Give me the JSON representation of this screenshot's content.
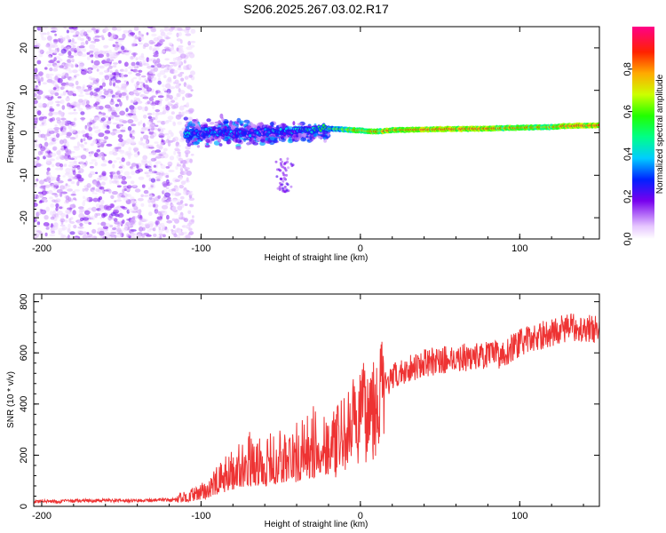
{
  "title": "S206.2025.267.03.02.R17",
  "chart_data": [
    {
      "type": "heatmap",
      "name": "spectrogram",
      "xlabel": "Height of straight line (km)",
      "ylabel": "Frequency (Hz)",
      "xlim": [
        -205,
        150
      ],
      "ylim": [
        -25,
        25
      ],
      "x_ticks": [
        -200,
        -100,
        0,
        100
      ],
      "x_tick_labels": [
        "-200",
        "-100",
        "0",
        "100"
      ],
      "y_ticks": [
        20,
        10,
        0,
        -10,
        -20
      ],
      "y_tick_labels": [
        "20",
        "10",
        "0",
        "-10",
        "-20"
      ],
      "colorbar": {
        "label": "Normalized spectral amplitude",
        "range": [
          0,
          1
        ],
        "ticks": [
          0.0,
          0.2,
          0.4,
          0.6,
          0.8
        ],
        "tick_labels": [
          "0.0",
          "0.2",
          "0.4",
          "0.6",
          "0.8"
        ]
      },
      "carrier_line": {
        "x": [
          -110,
          -95,
          -80,
          -60,
          -40,
          -22,
          -10,
          0,
          10,
          20,
          40,
          60,
          80,
          100,
          120,
          130,
          150
        ],
        "frequency": [
          -0.5,
          0.2,
          -0.2,
          0.3,
          0.5,
          1.0,
          0.8,
          0.5,
          0.3,
          0.6,
          0.8,
          0.9,
          1.0,
          1.2,
          1.4,
          1.6,
          1.8
        ],
        "amplitude": [
          0.25,
          0.2,
          0.18,
          0.2,
          0.25,
          0.45,
          0.7,
          0.75,
          0.8,
          0.85,
          0.9,
          0.9,
          0.85,
          0.8,
          0.8,
          0.9,
          0.9
        ]
      },
      "noise_regions": [
        {
          "x_range": [
            -205,
            -120
          ],
          "freq_range": [
            -25,
            25
          ],
          "amplitude": "low (0.05-0.2)"
        },
        {
          "x_range": [
            -120,
            -105
          ],
          "freq_range": [
            -25,
            25
          ],
          "amplitude": "very low (0.02-0.08)"
        },
        {
          "x_range": [
            -110,
            -20
          ],
          "freq_range": [
            -8,
            8
          ],
          "amplitude": "medium (0.1-0.4)"
        }
      ]
    },
    {
      "type": "line",
      "name": "snr",
      "xlabel": "Height of straight line (km)",
      "ylabel": "SNR (10 * v/v)",
      "xlim": [
        -205,
        150
      ],
      "ylim": [
        0,
        830
      ],
      "x_ticks": [
        -200,
        -100,
        0,
        100
      ],
      "x_tick_labels": [
        "-200",
        "-100",
        "0",
        "100"
      ],
      "y_ticks": [
        0,
        200,
        400,
        600,
        800
      ],
      "y_tick_labels": [
        "0",
        "200",
        "400",
        "600",
        "800"
      ],
      "series": [
        {
          "name": "SNR",
          "color": "#ee3333",
          "x": [
            -205,
            -190,
            -170,
            -150,
            -130,
            -115,
            -110,
            -100,
            -90,
            -80,
            -70,
            -60,
            -50,
            -40,
            -30,
            -22,
            -15,
            -10,
            -5,
            0,
            5,
            10,
            15,
            20,
            25,
            30,
            40,
            50,
            60,
            70,
            80,
            90,
            95,
            100,
            110,
            120,
            130,
            140,
            150
          ],
          "y": [
            20,
            20,
            22,
            22,
            24,
            25,
            30,
            45,
            80,
            120,
            150,
            140,
            160,
            170,
            200,
            220,
            250,
            280,
            320,
            350,
            380,
            420,
            470,
            500,
            520,
            540,
            560,
            570,
            580,
            585,
            590,
            595,
            620,
            640,
            660,
            680,
            700,
            700,
            690
          ]
        }
      ]
    }
  ]
}
